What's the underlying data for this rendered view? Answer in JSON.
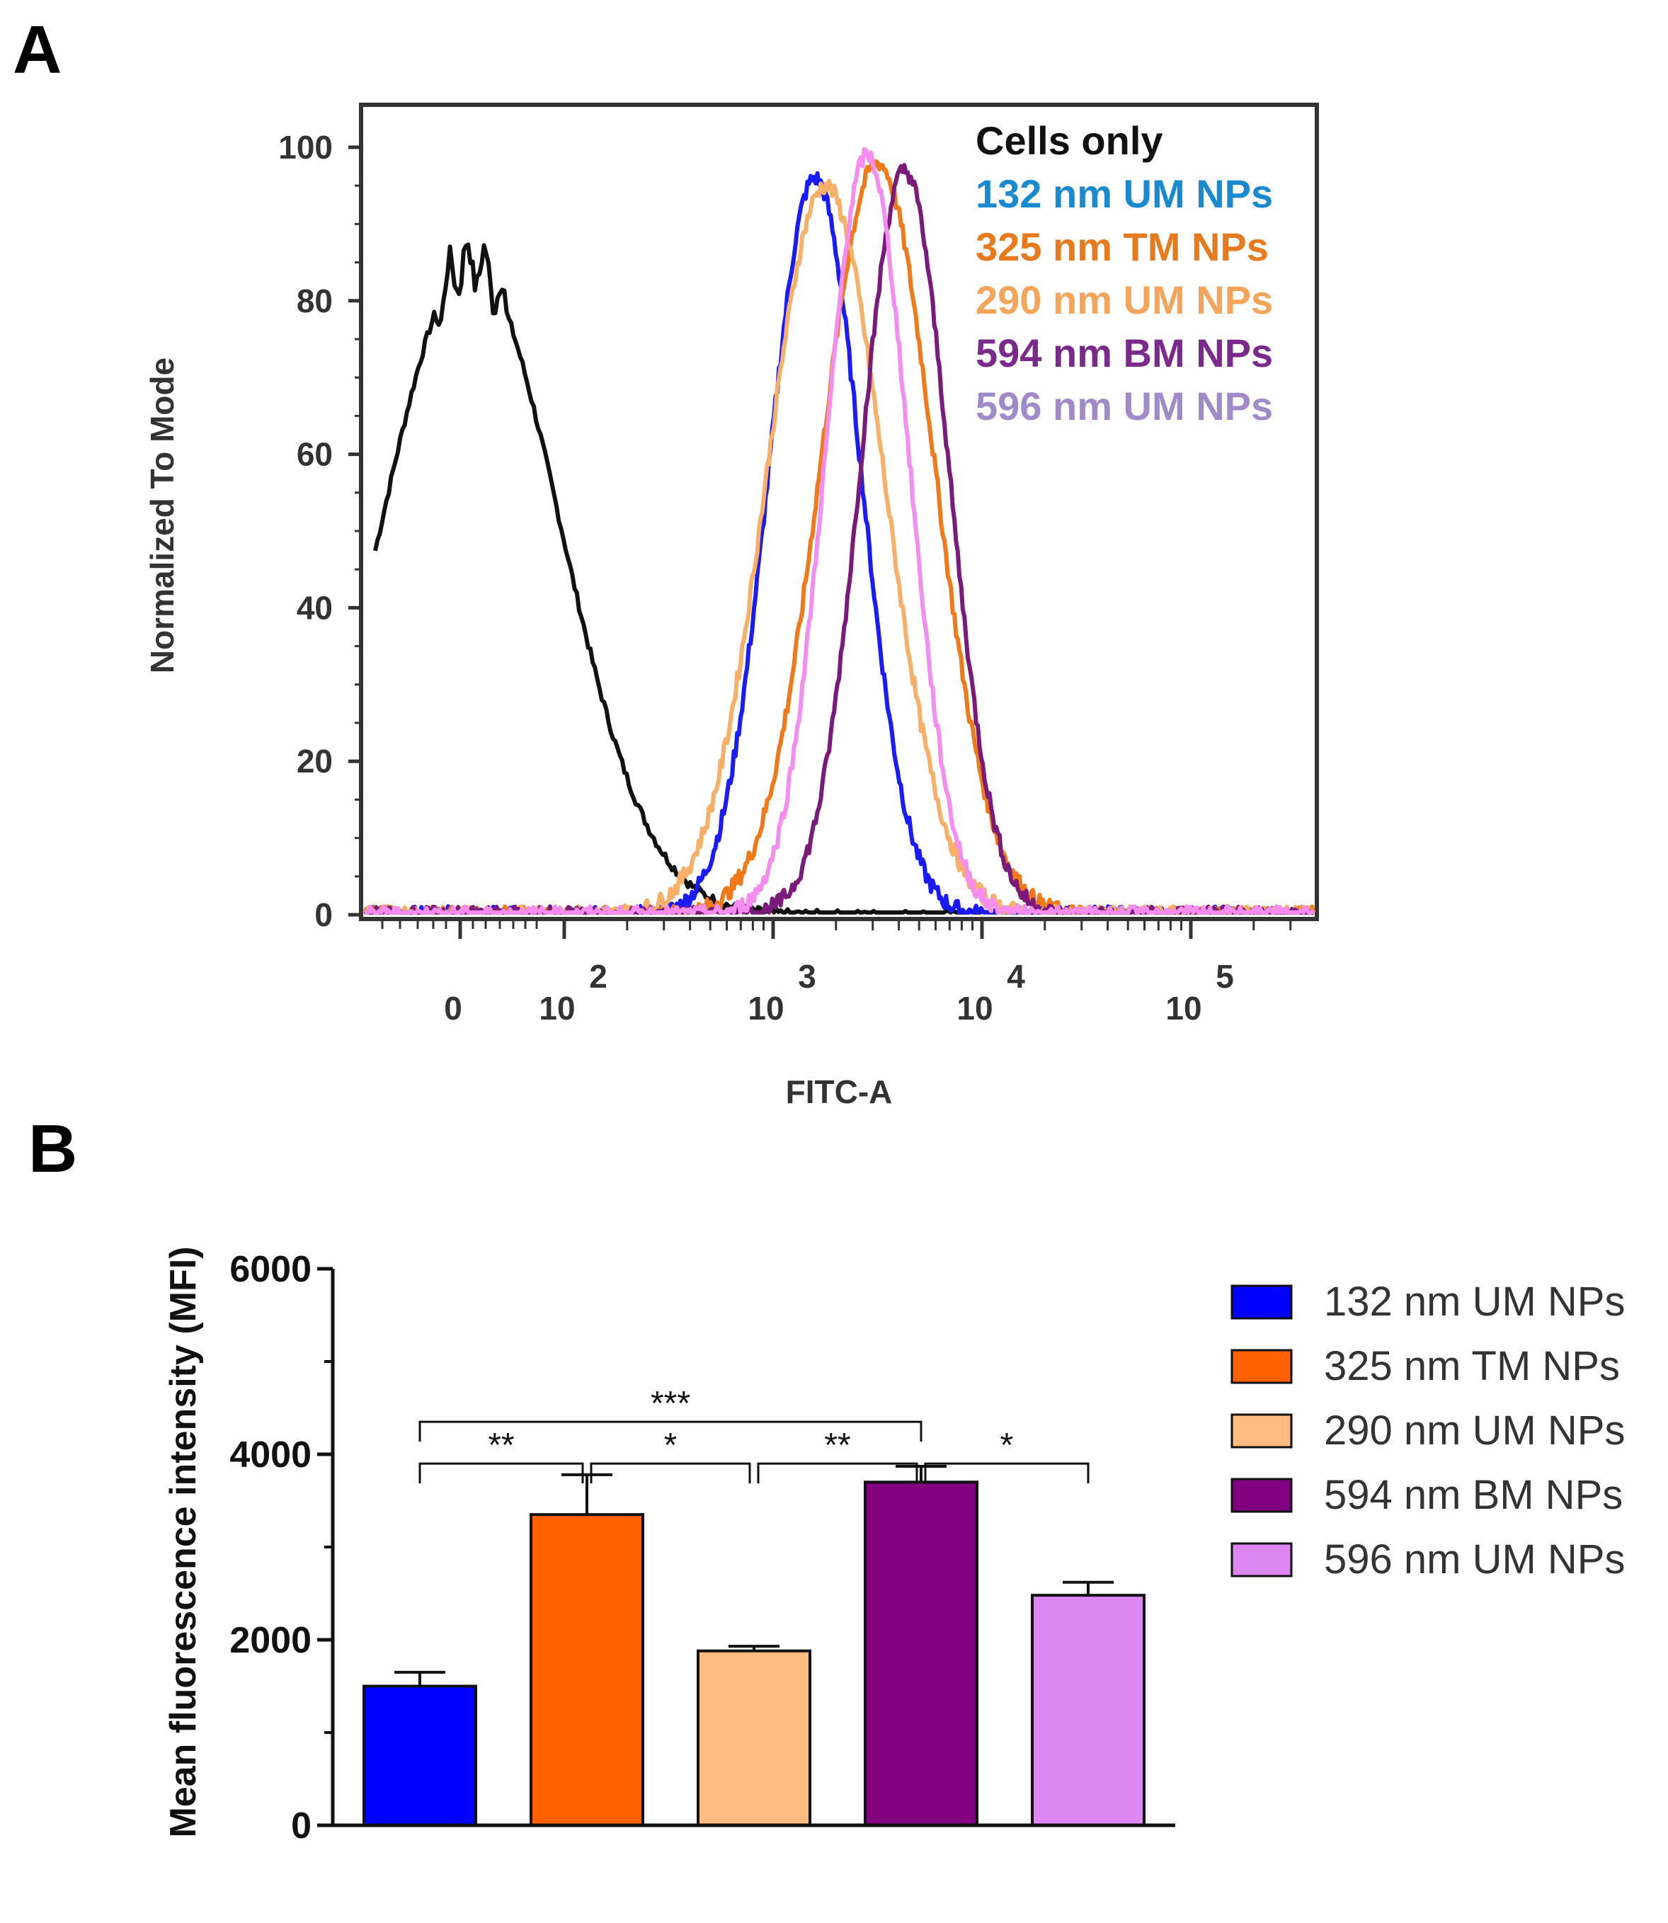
{
  "chart_data": [
    {
      "panel": "A",
      "type": "line",
      "ylabel": "Normalized To Mode",
      "xlabel": "FITC-A",
      "xscale": "log (biexponential)",
      "ylim": [
        0,
        100
      ],
      "y_ticks": [
        "0",
        "20",
        "40",
        "60",
        "80",
        "100"
      ],
      "x_ticks": [
        {
          "base": "0",
          "exp": ""
        },
        {
          "base": "10",
          "exp": "2"
        },
        {
          "base": "10",
          "exp": "3"
        },
        {
          "base": "10",
          "exp": "4"
        },
        {
          "base": "10",
          "exp": "5"
        }
      ],
      "series": [
        {
          "name": "Cells  only",
          "color": "#111111",
          "peak_log10": 1.35,
          "width": 0.33,
          "peak": 85
        },
        {
          "name": "132 nm UM NPs",
          "color": "#1a1aff",
          "peak_log10": 3.2,
          "width": 0.22,
          "peak": 96
        },
        {
          "name": "325 nm TM NPs",
          "color": "#f07a1a",
          "peak_log10": 3.5,
          "width": 0.27,
          "peak": 98
        },
        {
          "name": "290 nm UM NPs",
          "color": "#f8b069",
          "peak_log10": 3.25,
          "width": 0.28,
          "peak": 95
        },
        {
          "name": "594 nm BM NPs",
          "color": "#7a1a7a",
          "peak_log10": 3.63,
          "width": 0.21,
          "peak": 97
        },
        {
          "name": "596 nm UM NPs",
          "color": "#f58cf0",
          "peak_log10": 3.45,
          "width": 0.2,
          "peak": 99
        }
      ],
      "legend_colors": [
        "#111111",
        "#1a8ad0",
        "#e87a1e",
        "#f5a55a",
        "#7a2a8a",
        "#a08ac8"
      ]
    },
    {
      "panel": "B",
      "type": "bar",
      "ylabel": "Mean fluorescence intensity (MFI)",
      "ylim": [
        0,
        6000
      ],
      "y_ticks": [
        "0",
        "2000",
        "4000",
        "6000"
      ],
      "categories": [
        "132 nm UM NPs",
        "325 nm TM NPs",
        "290 nm UM NPs",
        "594 nm BM NPs",
        "596 nm UM NPs"
      ],
      "values": [
        1500,
        3350,
        1880,
        3700,
        2480
      ],
      "errors": [
        150,
        430,
        50,
        170,
        140
      ],
      "colors": [
        "#0000ff",
        "#ff6000",
        "#ffbc80",
        "#800080",
        "#dd88f2"
      ],
      "significance": [
        {
          "from": 0,
          "to": 3,
          "label": "***",
          "level": 4350
        },
        {
          "from": 0,
          "to": 1,
          "label": "**",
          "level": 3900
        },
        {
          "from": 1,
          "to": 2,
          "label": "*",
          "level": 3900
        },
        {
          "from": 2,
          "to": 3,
          "label": "**",
          "level": 3900
        },
        {
          "from": 3,
          "to": 4,
          "label": "*",
          "level": 3900
        }
      ]
    }
  ],
  "panel_labels": {
    "a": "A",
    "b": "B"
  }
}
